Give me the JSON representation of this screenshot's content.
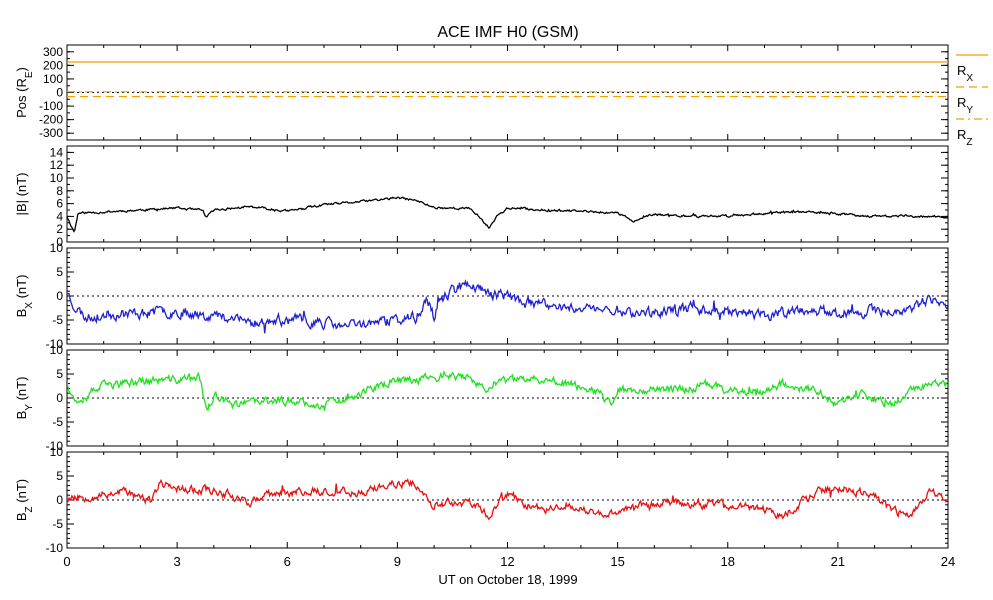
{
  "chart_data": {
    "type": "line",
    "title": "ACE IMF H0 (GSM)",
    "xlabel": "UT on October 18, 1999",
    "x_range": [
      0,
      24
    ],
    "x_ticks": [
      "0",
      "3",
      "6",
      "9",
      "12",
      "15",
      "18",
      "21",
      "24"
    ],
    "panels": [
      {
        "id": "pos",
        "ylabel": [
          "Pos (R",
          "E",
          ")"
        ],
        "ylim": [
          -350,
          350
        ],
        "y_ticks": [
          "300",
          "200",
          "100",
          "0",
          "-100",
          "-200",
          "-300"
        ],
        "zero_line": true,
        "series": [
          {
            "name": [
              "R",
              "X"
            ],
            "color": "#f0a000",
            "style": "solid",
            "constant": 225
          },
          {
            "name": [
              "R",
              "Y"
            ],
            "color": "#f0a000",
            "style": "dashed",
            "constant": -30
          },
          {
            "name": [
              "R",
              "Z"
            ],
            "color": "#f0a000",
            "style": "dashdot",
            "constant": 5
          }
        ]
      },
      {
        "id": "bt",
        "ylabel": [
          "|B| (nT)"
        ],
        "ylim": [
          0,
          15
        ],
        "y_ticks": [
          "14",
          "12",
          "10",
          "8",
          "6",
          "4",
          "2",
          "0"
        ],
        "zero_line": false,
        "series": [
          {
            "color": "#000000",
            "noise": 0.15,
            "seed": 11,
            "points": [
              [
                0,
                4.0
              ],
              [
                0.2,
                1.5
              ],
              [
                0.3,
                4.5
              ],
              [
                1,
                4.7
              ],
              [
                2,
                5.0
              ],
              [
                3,
                5.3
              ],
              [
                3.7,
                4.9
              ],
              [
                3.8,
                3.8
              ],
              [
                4,
                5.0
              ],
              [
                5,
                5.5
              ],
              [
                6,
                4.8
              ],
              [
                7,
                5.8
              ],
              [
                8,
                6.3
              ],
              [
                9,
                6.9
              ],
              [
                9.5,
                6.5
              ],
              [
                10,
                5.4
              ],
              [
                11,
                5.2
              ],
              [
                11.3,
                3.5
              ],
              [
                11.5,
                2.2
              ],
              [
                11.7,
                4.0
              ],
              [
                12,
                5.3
              ],
              [
                13,
                5.0
              ],
              [
                14,
                4.8
              ],
              [
                15,
                4.5
              ],
              [
                15.5,
                3.2
              ],
              [
                15.8,
                4.0
              ],
              [
                16,
                4.3
              ],
              [
                17,
                4.0
              ],
              [
                18,
                4.1
              ],
              [
                19,
                4.5
              ],
              [
                20,
                4.7
              ],
              [
                21,
                4.4
              ],
              [
                22,
                4.0
              ],
              [
                23,
                4.1
              ],
              [
                24,
                3.8
              ]
            ]
          }
        ]
      },
      {
        "id": "bx",
        "ylabel": [
          "B",
          "X",
          " (nT)"
        ],
        "ylim": [
          -10,
          10
        ],
        "y_ticks": [
          "10",
          "5",
          "0",
          "-5",
          "-10"
        ],
        "zero_line": true,
        "series": [
          {
            "color": "#2020d0",
            "noise": 0.9,
            "seed": 23,
            "points": [
              [
                0,
                1.0
              ],
              [
                0.2,
                -2.0
              ],
              [
                0.5,
                -4.5
              ],
              [
                1,
                -3.8
              ],
              [
                2,
                -3.5
              ],
              [
                3,
                -3.2
              ],
              [
                4,
                -4.0
              ],
              [
                5,
                -5.5
              ],
              [
                6,
                -5.0
              ],
              [
                7,
                -5.5
              ],
              [
                7.5,
                -6.5
              ],
              [
                8,
                -5.8
              ],
              [
                9,
                -5.0
              ],
              [
                9.5,
                -4.5
              ],
              [
                9.8,
                -1.0
              ],
              [
                10,
                -4.0
              ],
              [
                10.2,
                -1.0
              ],
              [
                10.5,
                1.5
              ],
              [
                11,
                2.5
              ],
              [
                11.5,
                0.5
              ],
              [
                12,
                0.0
              ],
              [
                12.5,
                -1.5
              ],
              [
                13,
                -2.0
              ],
              [
                14,
                -2.5
              ],
              [
                15,
                -3.0
              ],
              [
                15.5,
                -3.5
              ],
              [
                16,
                -3.5
              ],
              [
                17,
                -2.5
              ],
              [
                18,
                -3.0
              ],
              [
                19,
                -4.0
              ],
              [
                20,
                -3.0
              ],
              [
                21,
                -3.5
              ],
              [
                22,
                -3.2
              ],
              [
                23,
                -2.8
              ],
              [
                23.5,
                -1.0
              ],
              [
                24,
                -2.5
              ]
            ]
          }
        ]
      },
      {
        "id": "by",
        "ylabel": [
          "B",
          "Y",
          " (nT)"
        ],
        "ylim": [
          -10,
          10
        ],
        "y_ticks": [
          "10",
          "5",
          "0",
          "-5",
          "-10"
        ],
        "zero_line": true,
        "series": [
          {
            "color": "#20e020",
            "noise": 0.7,
            "seed": 37,
            "points": [
              [
                0,
                3.5
              ],
              [
                0.2,
                -0.5
              ],
              [
                0.5,
                0.5
              ],
              [
                1,
                2.5
              ],
              [
                2,
                3.5
              ],
              [
                3,
                3.8
              ],
              [
                3.6,
                4.5
              ],
              [
                3.8,
                -2.5
              ],
              [
                4,
                0.5
              ],
              [
                4.5,
                -1.5
              ],
              [
                5,
                -1.0
              ],
              [
                6,
                -0.5
              ],
              [
                7,
                -1.5
              ],
              [
                8,
                1.0
              ],
              [
                8.5,
                2.5
              ],
              [
                9,
                3.5
              ],
              [
                9.5,
                4.0
              ],
              [
                10,
                4.5
              ],
              [
                11,
                4.5
              ],
              [
                11.4,
                1.0
              ],
              [
                11.6,
                3.0
              ],
              [
                12,
                3.5
              ],
              [
                13,
                4.0
              ],
              [
                14,
                2.5
              ],
              [
                14.5,
                1.0
              ],
              [
                14.8,
                -1.5
              ],
              [
                15,
                1.5
              ],
              [
                16,
                2.0
              ],
              [
                17,
                2.0
              ],
              [
                17.5,
                3.0
              ],
              [
                18,
                1.5
              ],
              [
                19,
                1.5
              ],
              [
                19.5,
                3.0
              ],
              [
                20,
                2.0
              ],
              [
                20.5,
                1.5
              ],
              [
                21,
                -1.5
              ],
              [
                21.5,
                1.0
              ],
              [
                22,
                -0.5
              ],
              [
                22.5,
                -1.5
              ],
              [
                23,
                2.0
              ],
              [
                24,
                3.0
              ]
            ]
          }
        ]
      },
      {
        "id": "bz",
        "ylabel": [
          "B",
          "Z",
          " (nT)"
        ],
        "ylim": [
          -10,
          10
        ],
        "y_ticks": [
          "10",
          "5",
          "0",
          "-5",
          "-10"
        ],
        "zero_line": true,
        "series": [
          {
            "color": "#e81010",
            "noise": 0.7,
            "seed": 53,
            "points": [
              [
                0,
                0.5
              ],
              [
                1,
                1.0
              ],
              [
                1.5,
                2.0
              ],
              [
                2,
                0.5
              ],
              [
                2.3,
                -0.5
              ],
              [
                2.5,
                3.5
              ],
              [
                3,
                2.5
              ],
              [
                4,
                2.0
              ],
              [
                4.5,
                1.0
              ],
              [
                5,
                -0.5
              ],
              [
                5.5,
                1.0
              ],
              [
                6,
                1.5
              ],
              [
                7,
                2.0
              ],
              [
                8,
                1.5
              ],
              [
                8.5,
                2.5
              ],
              [
                9,
                3.5
              ],
              [
                9.5,
                3.5
              ],
              [
                9.8,
                0.0
              ],
              [
                10,
                -1.0
              ],
              [
                11,
                -0.5
              ],
              [
                11.5,
                -3.5
              ],
              [
                12,
                1.5
              ],
              [
                12.5,
                -1.0
              ],
              [
                13,
                -2.0
              ],
              [
                13.5,
                -1.0
              ],
              [
                14,
                -2.0
              ],
              [
                14.5,
                -3.0
              ],
              [
                15,
                -2.5
              ],
              [
                16,
                -0.5
              ],
              [
                17,
                -1.0
              ],
              [
                18,
                -1.0
              ],
              [
                19,
                -2.0
              ],
              [
                19.5,
                -3.5
              ],
              [
                20,
                -0.5
              ],
              [
                20.5,
                2.0
              ],
              [
                21,
                2.5
              ],
              [
                22,
                1.0
              ],
              [
                22.5,
                -2.5
              ],
              [
                23,
                -3.0
              ],
              [
                23.5,
                2.0
              ],
              [
                24,
                -0.5
              ]
            ]
          }
        ]
      }
    ]
  }
}
